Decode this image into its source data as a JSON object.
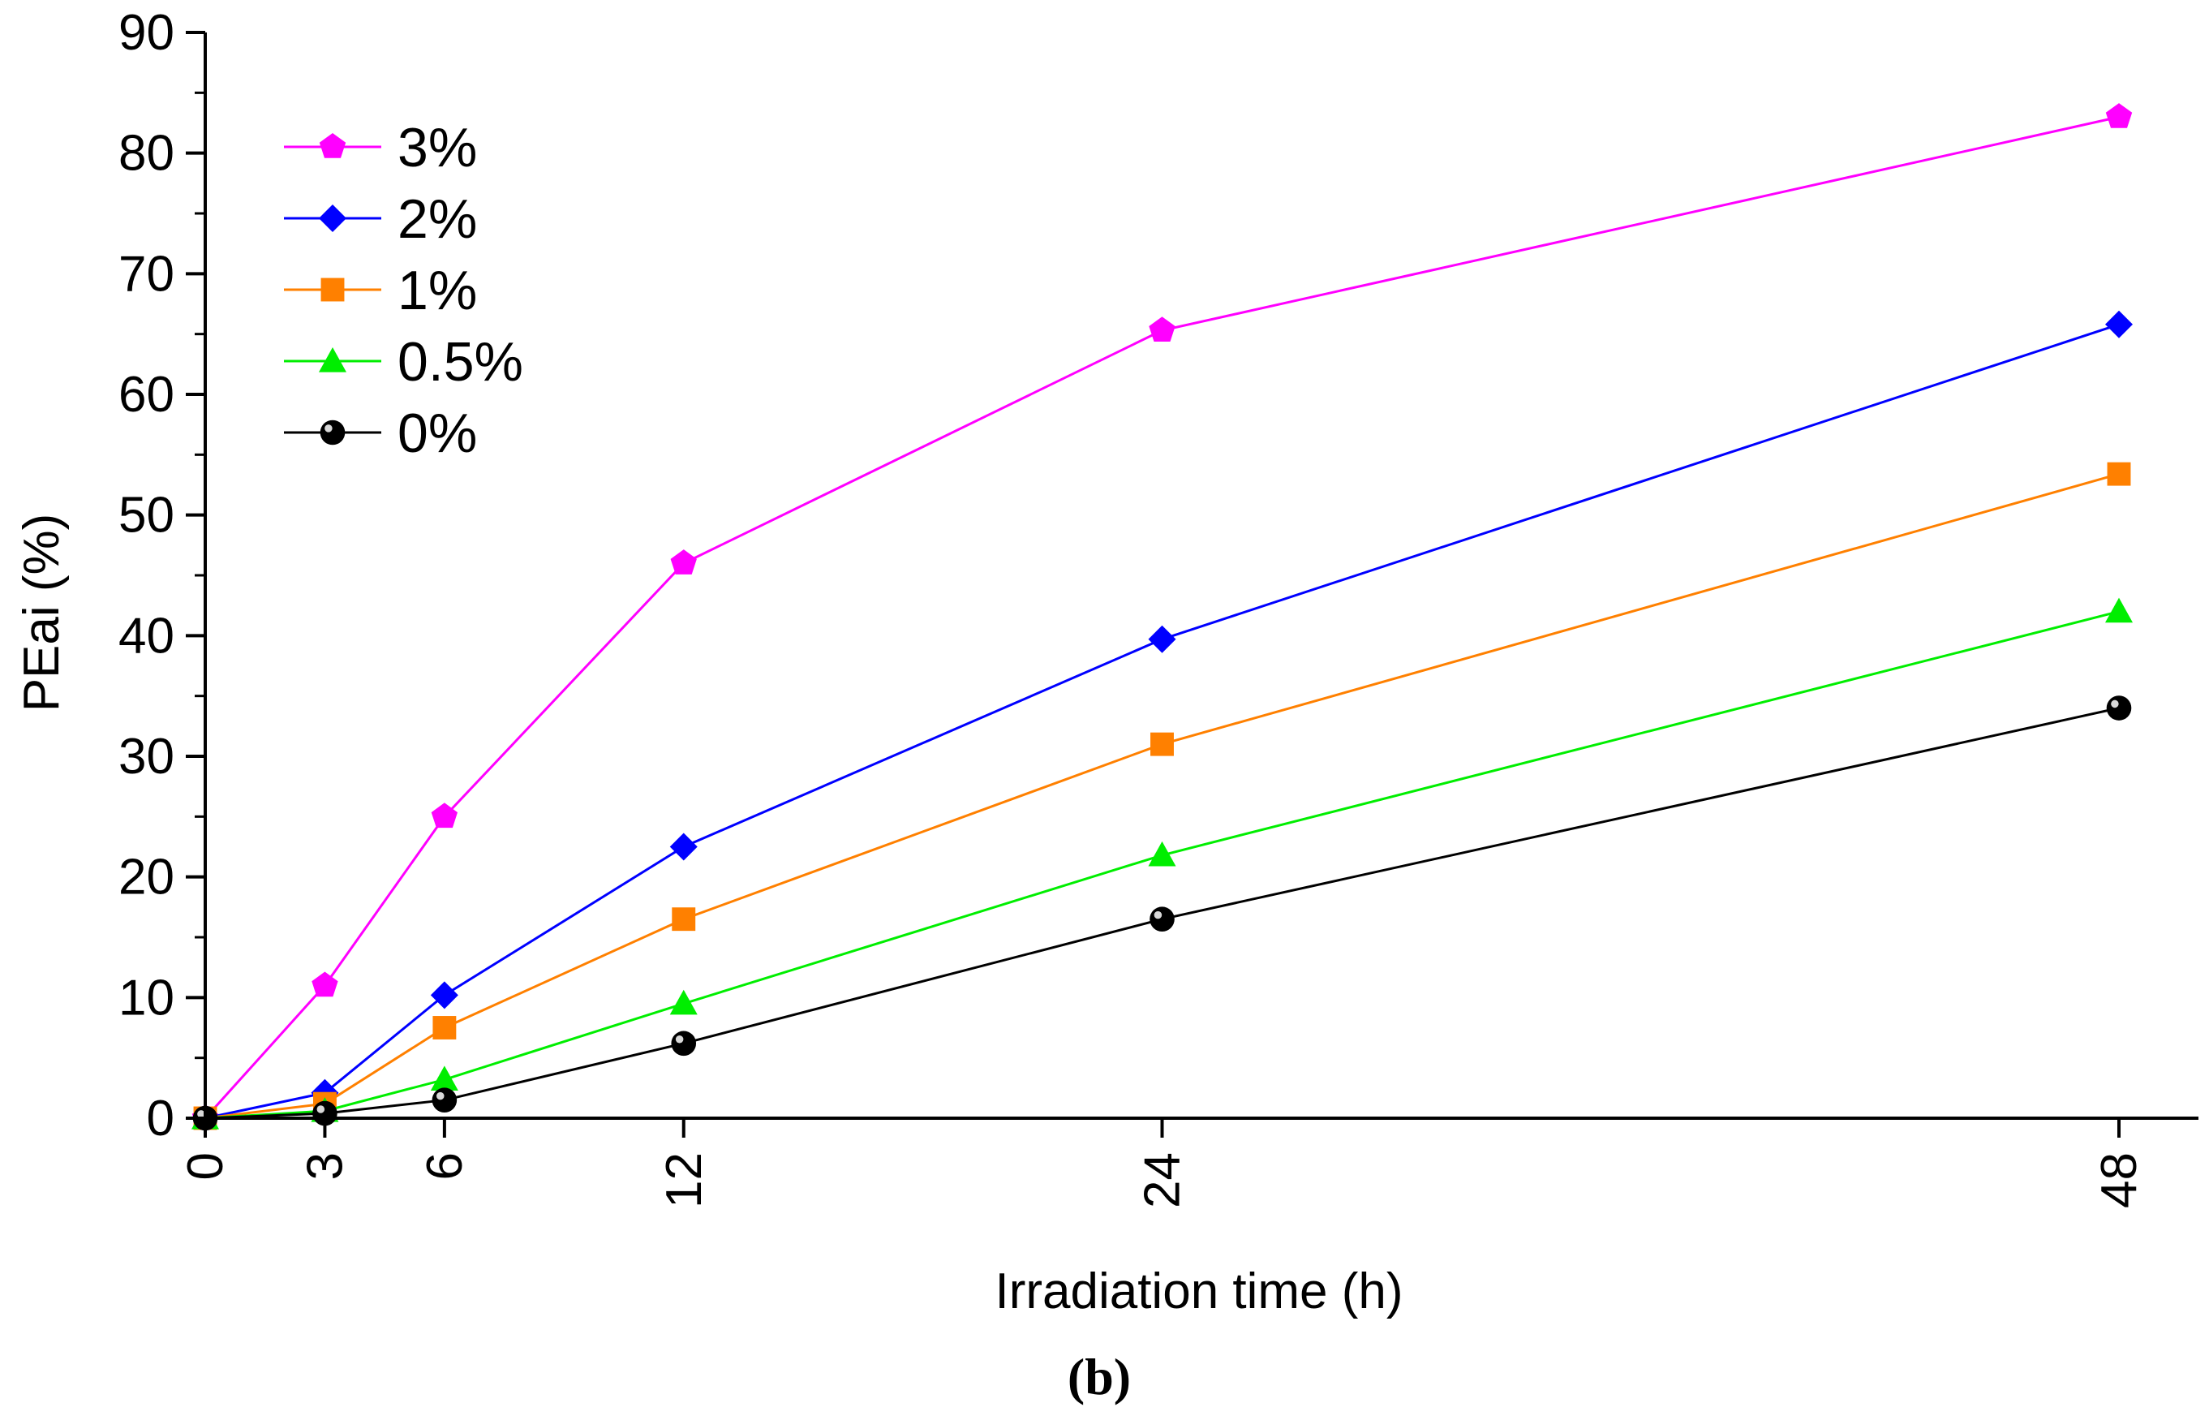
{
  "chart_data": {
    "type": "line",
    "title": "",
    "xlabel": "Irradiation time (h)",
    "ylabel": "PEai (%)",
    "panel_label": "(b)",
    "x": [
      0,
      3,
      6,
      12,
      24,
      48
    ],
    "x_tick_labels": [
      "0",
      "3",
      "6",
      "12",
      "24",
      "48"
    ],
    "y_ticks": [
      0,
      10,
      20,
      30,
      40,
      50,
      60,
      70,
      80,
      90
    ],
    "y_tick_labels": [
      "0",
      "10",
      "20",
      "30",
      "40",
      "50",
      "60",
      "70",
      "80",
      "90"
    ],
    "xlim": [
      0,
      50
    ],
    "ylim": [
      0,
      90
    ],
    "legend_position": "top-left",
    "series": [
      {
        "name": "3%",
        "marker": "pentagon",
        "color": "#ff00ff",
        "values": [
          0,
          11,
          25,
          46,
          65.3,
          83
        ]
      },
      {
        "name": "2%",
        "marker": "diamond",
        "color": "#0000ff",
        "values": [
          0,
          2.1,
          10.2,
          22.5,
          39.7,
          65.8
        ]
      },
      {
        "name": "1%",
        "marker": "square",
        "color": "#ff8000",
        "values": [
          0,
          1.2,
          7.5,
          16.5,
          31,
          53.4
        ]
      },
      {
        "name": "0.5%",
        "marker": "triangle",
        "color": "#00ee00",
        "values": [
          0,
          0.6,
          3.2,
          9.5,
          21.8,
          42
        ]
      },
      {
        "name": "0%",
        "marker": "circle",
        "color": "#000000",
        "values": [
          0,
          0.4,
          1.5,
          6.2,
          16.5,
          34
        ]
      }
    ]
  }
}
